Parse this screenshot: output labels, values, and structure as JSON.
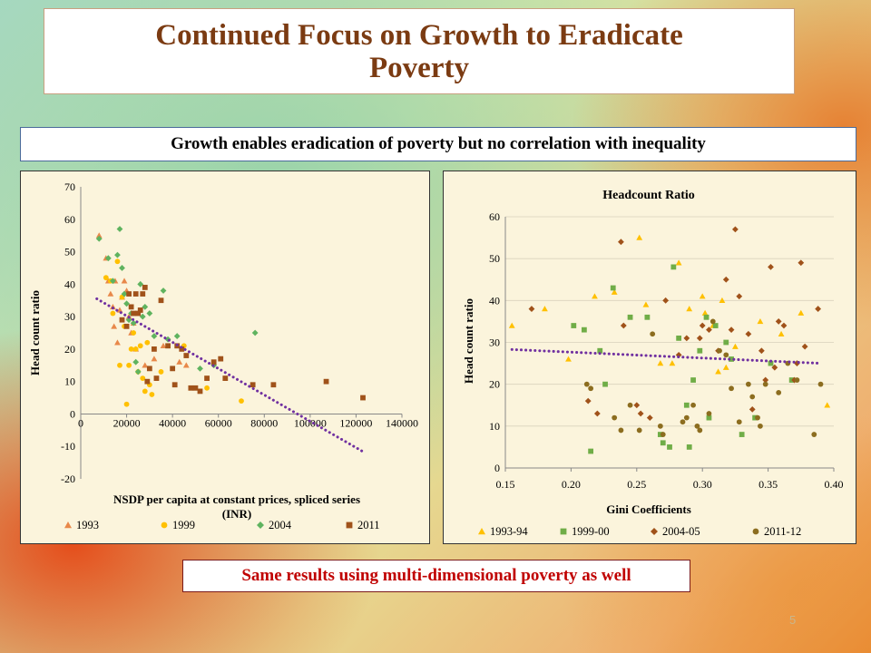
{
  "slide": {
    "title": "Continued Focus on Growth to Eradicate\nPoverty",
    "subtitle": "Growth enables eradication of poverty but no correlation with inequality",
    "footer": "Same results using multi-dimensional poverty as well",
    "page_number": "5"
  },
  "chart_data": [
    {
      "type": "scatter",
      "title": "",
      "xlabel": "NSDP per capita at constant prices, spliced series (INR)",
      "ylabel": "Head count ratio",
      "xlim": [
        0,
        140000
      ],
      "ylim": [
        -20,
        70
      ],
      "xticks": [
        "0",
        "20000",
        "40000",
        "60000",
        "80000",
        "100000",
        "120000",
        "140000"
      ],
      "yticks": [
        "-20",
        "-10",
        "0",
        "10",
        "20",
        "30",
        "40",
        "50",
        "60",
        "70"
      ],
      "legend_position": "bottom",
      "trendline": {
        "type": "linear",
        "x": [
          7000,
          124000
        ],
        "y": [
          35.5,
          -12
        ],
        "color": "#7030a0"
      },
      "series": [
        {
          "name": "1993",
          "marker": "triangle",
          "color": "#e8884a",
          "x": [
            8000,
            11000,
            12000,
            13000,
            14000,
            14500,
            15000,
            16000,
            17000,
            18000,
            19000,
            20000,
            21000,
            22000,
            23000,
            24000,
            28000,
            32000,
            36000,
            43000,
            46000
          ],
          "y": [
            55,
            48,
            41,
            37,
            33,
            27,
            41,
            22,
            32,
            36,
            41,
            38,
            30,
            25,
            28,
            20,
            15,
            17,
            21,
            16,
            15
          ]
        },
        {
          "name": "1999",
          "marker": "circle",
          "color": "#ffc000",
          "x": [
            11000,
            13000,
            14000,
            16000,
            17000,
            18000,
            19000,
            20000,
            21000,
            22000,
            23000,
            24000,
            25000,
            26000,
            27000,
            28000,
            29000,
            30000,
            31000,
            35000,
            45000,
            55000,
            70000
          ],
          "y": [
            42,
            41,
            31,
            47,
            15,
            36,
            27,
            3,
            15,
            20,
            25,
            20,
            13,
            21,
            11,
            7,
            22,
            9,
            6,
            13,
            21,
            8,
            4
          ]
        },
        {
          "name": "2004",
          "marker": "diamond",
          "color": "#5fb35f",
          "x": [
            8000,
            12000,
            14000,
            16000,
            17000,
            18000,
            19000,
            20000,
            21000,
            22000,
            23000,
            24000,
            25000,
            26000,
            27000,
            28000,
            30000,
            32000,
            36000,
            38000,
            42000,
            52000,
            58000,
            76000
          ],
          "y": [
            54,
            48,
            41,
            49,
            57,
            45,
            37,
            34,
            29,
            31,
            28,
            16,
            13,
            40,
            30,
            33,
            31,
            24,
            38,
            23,
            24,
            14,
            15,
            25
          ]
        },
        {
          "name": "2011",
          "marker": "square",
          "color": "#a0521a",
          "x": [
            18000,
            20000,
            21000,
            22000,
            23000,
            24000,
            25000,
            26000,
            27000,
            28000,
            29000,
            30000,
            32000,
            33000,
            35000,
            38000,
            40000,
            41000,
            42000,
            44000,
            46000,
            48000,
            50000,
            52000,
            55000,
            58000,
            61000,
            63000,
            75000,
            84000,
            107000,
            123000
          ],
          "y": [
            29,
            27,
            37,
            33,
            31,
            37,
            31,
            32,
            37,
            39,
            10,
            14,
            20,
            11,
            35,
            21,
            14,
            9,
            21,
            20,
            18,
            8,
            8,
            7,
            11,
            16,
            17,
            11,
            9,
            9,
            10,
            5
          ]
        }
      ]
    },
    {
      "type": "scatter",
      "title": "Headcount Ratio",
      "xlabel": "Gini Coefficients",
      "ylabel": "Head count  ratio",
      "xlim": [
        0.15,
        0.4
      ],
      "ylim": [
        0,
        60
      ],
      "xticks": [
        "0.15",
        "0.20",
        "0.25",
        "0.30",
        "0.35",
        "0.40"
      ],
      "yticks": [
        "0",
        "10",
        "20",
        "30",
        "40",
        "50",
        "60"
      ],
      "legend_position": "bottom",
      "trendline": {
        "type": "linear",
        "x": [
          0.155,
          0.39
        ],
        "y": [
          28.3,
          25
        ],
        "color": "#7030a0"
      },
      "series": [
        {
          "name": "1993-94",
          "marker": "triangle",
          "color": "#ffc000",
          "x": [
            0.155,
            0.18,
            0.198,
            0.218,
            0.233,
            0.252,
            0.257,
            0.268,
            0.277,
            0.282,
            0.29,
            0.3,
            0.302,
            0.308,
            0.312,
            0.315,
            0.318,
            0.325,
            0.344,
            0.36,
            0.375,
            0.395
          ],
          "y": [
            34,
            38,
            26,
            41,
            42,
            55,
            39,
            25,
            25,
            49,
            38,
            41,
            37,
            34,
            23,
            40,
            24,
            29,
            35,
            32,
            37,
            15
          ]
        },
        {
          "name": "1999-00",
          "marker": "square",
          "color": "#70ad47",
          "x": [
            0.202,
            0.21,
            0.215,
            0.222,
            0.226,
            0.232,
            0.245,
            0.258,
            0.268,
            0.27,
            0.275,
            0.278,
            0.282,
            0.288,
            0.29,
            0.293,
            0.298,
            0.303,
            0.305,
            0.31,
            0.318,
            0.322,
            0.33,
            0.34,
            0.352,
            0.368
          ],
          "y": [
            34,
            33,
            4,
            28,
            20,
            43,
            36,
            36,
            8,
            6,
            5,
            48,
            31,
            15,
            5,
            21,
            28,
            36,
            12,
            34,
            30,
            26,
            8,
            12,
            25,
            21
          ]
        },
        {
          "name": "2004-05",
          "marker": "diamond",
          "color": "#a0521a",
          "x": [
            0.17,
            0.213,
            0.22,
            0.238,
            0.24,
            0.25,
            0.253,
            0.26,
            0.272,
            0.282,
            0.288,
            0.298,
            0.3,
            0.305,
            0.312,
            0.318,
            0.322,
            0.325,
            0.328,
            0.335,
            0.338,
            0.345,
            0.348,
            0.352,
            0.355,
            0.358,
            0.362,
            0.37,
            0.372,
            0.375,
            0.378,
            0.388
          ],
          "y": [
            38,
            16,
            13,
            54,
            34,
            15,
            13,
            12,
            40,
            27,
            31,
            31,
            34,
            33,
            28,
            45,
            33,
            57,
            41,
            32,
            14,
            28,
            21,
            48,
            24,
            35,
            34,
            21,
            25,
            49,
            29,
            38
          ]
        },
        {
          "name": "2011-12",
          "marker": "circle",
          "color": "#8c6d1f",
          "x": [
            0.212,
            0.215,
            0.233,
            0.238,
            0.245,
            0.252,
            0.262,
            0.268,
            0.27,
            0.285,
            0.288,
            0.293,
            0.296,
            0.298,
            0.305,
            0.308,
            0.313,
            0.318,
            0.322,
            0.328,
            0.335,
            0.338,
            0.342,
            0.344,
            0.348,
            0.358,
            0.365,
            0.372,
            0.385,
            0.39
          ],
          "y": [
            20,
            19,
            12,
            9,
            15,
            9,
            32,
            10,
            8,
            11,
            12,
            15,
            10,
            9,
            13,
            35,
            28,
            27,
            19,
            11,
            20,
            17,
            12,
            10,
            20,
            18,
            25,
            21,
            8,
            20
          ]
        }
      ]
    }
  ]
}
